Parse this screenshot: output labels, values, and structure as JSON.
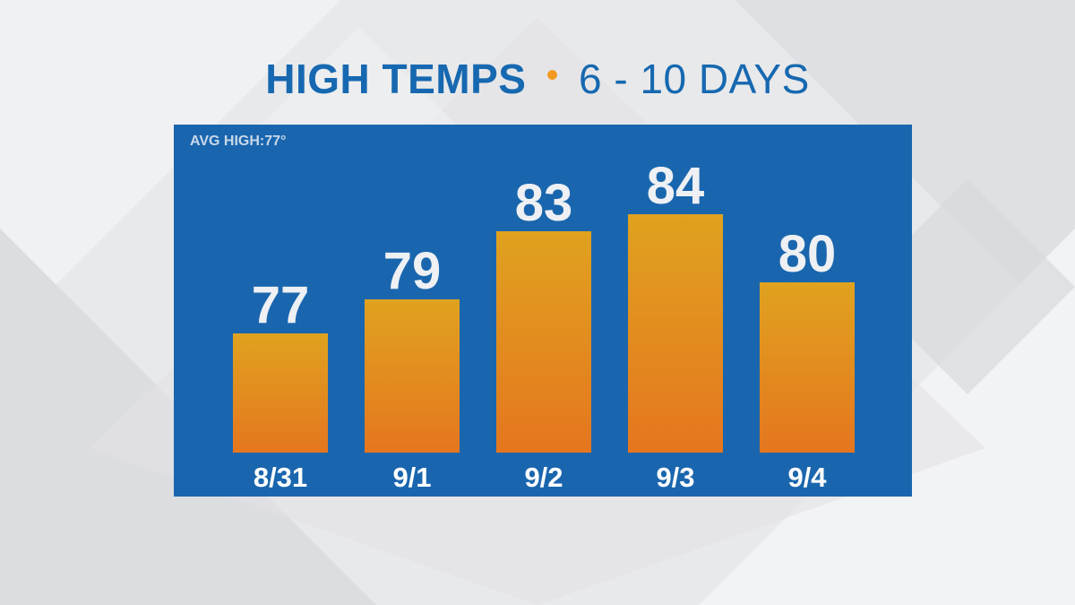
{
  "header": {
    "title_main": "HIGH TEMPS",
    "title_sep": "•",
    "title_sub": "6 - 10 DAYS"
  },
  "panel": {
    "avg_label": "AVG HIGH:77°"
  },
  "colors": {
    "panel_bg": "#1a66ae",
    "bar_top": "#e0a21f",
    "bar_bottom": "#e5761f",
    "title_blue": "#1668b0",
    "accent_orange": "#f29a1f"
  },
  "chart_data": {
    "type": "bar",
    "title": "HIGH TEMPS • 6 - 10 DAYS",
    "categories": [
      "8/31",
      "9/1",
      "9/2",
      "9/3",
      "9/4"
    ],
    "values": [
      77,
      79,
      83,
      84,
      80
    ],
    "xlabel": "",
    "ylabel": "",
    "grid": false,
    "legend": "none",
    "data_labels": true
  }
}
